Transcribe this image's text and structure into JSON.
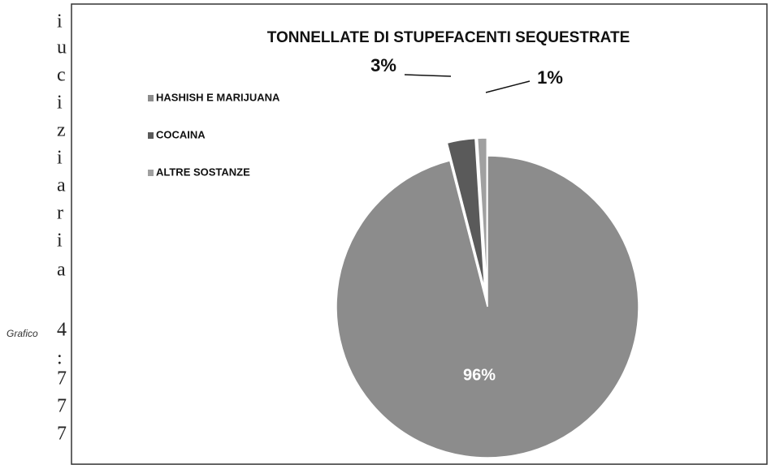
{
  "side_text": [
    "i",
    "u",
    "c",
    "i",
    "z",
    "i",
    "a",
    "r",
    "i",
    "a",
    "4",
    ":",
    "7",
    "7",
    "7"
  ],
  "caption": "Grafico",
  "chart_data": {
    "type": "pie",
    "title": "TONNELLATE DI STUPEFACENTI SEQUESTRATE",
    "categories": [
      "HASHISH E MARIJUANA",
      "COCAINA",
      "ALTRE SOSTANZE"
    ],
    "values": [
      96,
      3,
      1
    ],
    "value_labels": [
      "96%",
      "3%",
      "1%"
    ],
    "colors": [
      "#8c8c8c",
      "#5a5a5a",
      "#a0a0a0"
    ],
    "legend": "upper left"
  }
}
